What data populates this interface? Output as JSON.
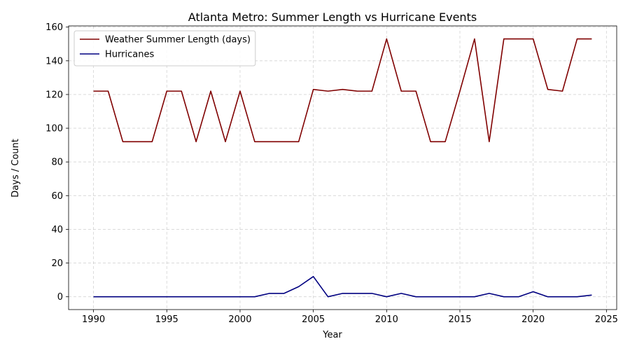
{
  "chart_data": {
    "type": "line",
    "title": "Atlanta Metro: Summer Length vs Hurricane Events",
    "xlabel": "Year",
    "ylabel": "Days / Count",
    "xlim": [
      1988.3,
      2025.7
    ],
    "ylim": [
      -7.6,
      160.7
    ],
    "xticks": [
      1990,
      1995,
      2000,
      2005,
      2010,
      2015,
      2020,
      2025
    ],
    "yticks": [
      0,
      20,
      40,
      60,
      80,
      100,
      120,
      140,
      160
    ],
    "grid": true,
    "legend_position": "top-left",
    "x": [
      1990,
      1991,
      1992,
      1993,
      1994,
      1995,
      1996,
      1997,
      1998,
      1999,
      2000,
      2001,
      2002,
      2003,
      2004,
      2005,
      2006,
      2007,
      2008,
      2009,
      2010,
      2011,
      2012,
      2013,
      2014,
      2015,
      2016,
      2017,
      2018,
      2019,
      2020,
      2021,
      2022,
      2023,
      2024
    ],
    "series": [
      {
        "name": "Weather Summer Length (days)",
        "color": "#800000",
        "values": [
          122,
          122,
          92,
          92,
          92,
          122,
          122,
          92,
          122,
          92,
          122,
          92,
          92,
          92,
          92,
          123,
          122,
          123,
          122,
          122,
          153,
          122,
          122,
          92,
          92,
          122,
          153,
          92,
          153,
          153,
          153,
          123,
          122,
          153,
          153
        ]
      },
      {
        "name": "Hurricanes",
        "color": "#000080",
        "values": [
          0,
          0,
          0,
          0,
          0,
          0,
          0,
          0,
          0,
          0,
          0,
          0,
          2,
          2,
          6,
          12,
          0,
          2,
          2,
          2,
          0,
          2,
          0,
          0,
          0,
          0,
          0,
          2,
          0,
          0,
          3,
          0,
          0,
          0,
          1
        ]
      }
    ]
  }
}
